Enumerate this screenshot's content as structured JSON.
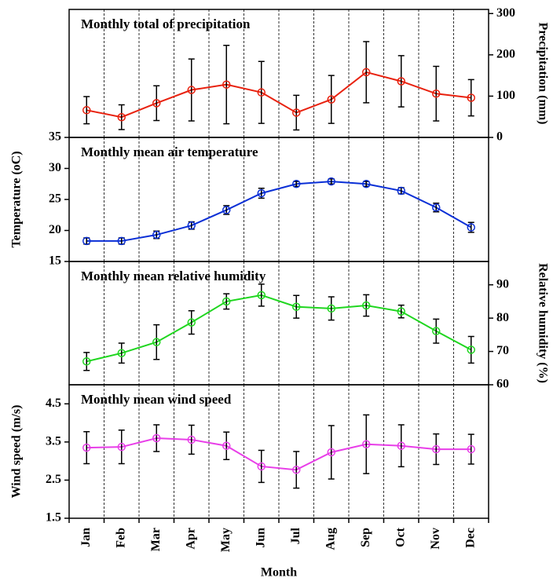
{
  "chart_data": [
    {
      "type": "line",
      "title": "Monthly total of precipitation",
      "ylabel": "Precipitation (mm)",
      "yaxis_side": "right",
      "color": "#e8210e",
      "grid": true,
      "values": [
        66,
        49,
        83,
        115,
        128,
        109,
        60,
        92,
        158,
        136,
        106,
        96
      ],
      "errors": [
        33,
        30,
        42,
        75,
        95,
        75,
        42,
        58,
        74,
        62,
        66,
        44
      ],
      "ylim": [
        0,
        310
      ],
      "yticks": [
        0,
        100,
        200,
        300
      ]
    },
    {
      "type": "line",
      "title": "Monthly mean air temperature",
      "ylabel": "Temperature (oC)",
      "yaxis_side": "left",
      "color": "#0a2fd6",
      "grid": true,
      "values": [
        18.3,
        18.3,
        19.3,
        20.8,
        23.3,
        26.0,
        27.5,
        27.9,
        27.5,
        26.4,
        23.7,
        20.5
      ],
      "errors": [
        0.5,
        0.5,
        0.6,
        0.6,
        0.7,
        0.8,
        0.4,
        0.4,
        0.4,
        0.5,
        0.7,
        0.8
      ],
      "ylim": [
        15,
        35
      ],
      "yticks": [
        15,
        20,
        25,
        30,
        35
      ]
    },
    {
      "type": "line",
      "title": "Monthly mean relative humidity",
      "ylabel": "Relative humidity (%)",
      "yaxis_side": "right",
      "color": "#1fd61f",
      "grid": true,
      "values": [
        67.0,
        69.5,
        72.8,
        78.7,
        85.0,
        86.9,
        83.4,
        82.9,
        83.8,
        82.0,
        76.1,
        70.5
      ],
      "errors": [
        2.7,
        3.0,
        5.2,
        3.5,
        2.3,
        3.3,
        3.4,
        3.5,
        3.2,
        1.9,
        3.6,
        4.0
      ],
      "ylim": [
        60,
        97
      ],
      "yticks": [
        60,
        70,
        80,
        90
      ]
    },
    {
      "type": "line",
      "title": "Monthly mean wind speed",
      "ylabel": "Wind speed (m/s)",
      "yaxis_side": "left",
      "color": "#e83ee8",
      "grid": true,
      "xlabel": "Month",
      "categories": [
        "Jan",
        "Feb",
        "Mar",
        "Apr",
        "May",
        "Jun",
        "Jul",
        "Aug",
        "Sep",
        "Oct",
        "Nov",
        "Dec"
      ],
      "values": [
        3.35,
        3.37,
        3.6,
        3.56,
        3.4,
        2.86,
        2.77,
        3.23,
        3.44,
        3.4,
        3.31,
        3.31
      ],
      "errors": [
        0.42,
        0.44,
        0.35,
        0.38,
        0.36,
        0.42,
        0.48,
        0.7,
        0.77,
        0.55,
        0.4,
        0.39
      ],
      "ylim": [
        1.5,
        5.0
      ],
      "yticks": [
        1.5,
        2.5,
        3.5,
        4.5
      ]
    }
  ]
}
